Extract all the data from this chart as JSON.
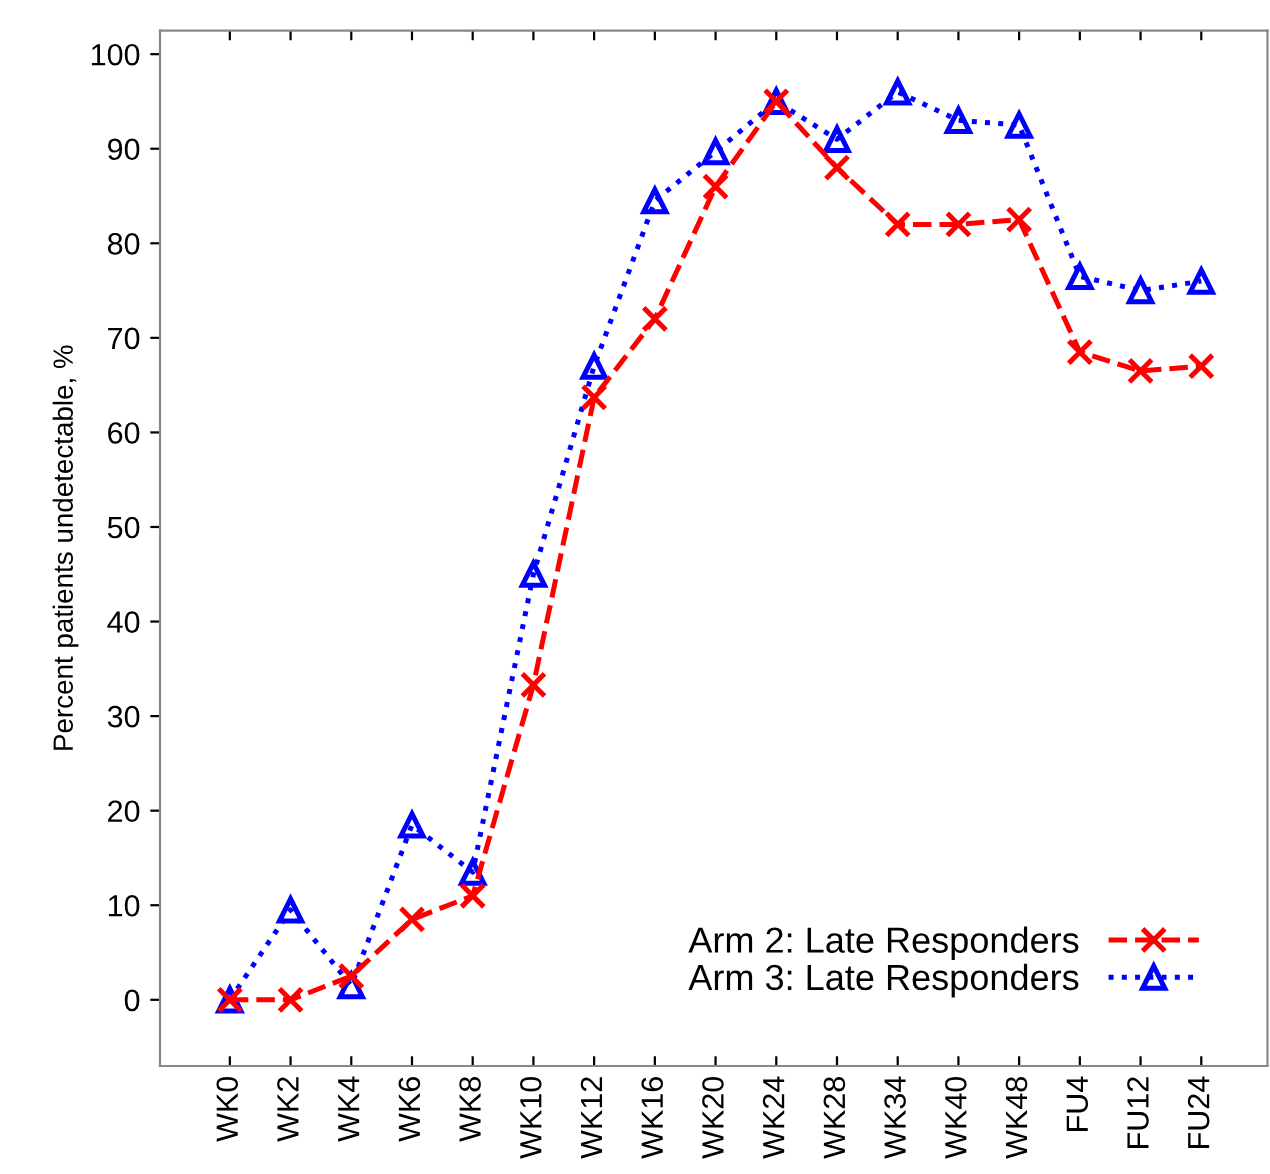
{
  "chart_data": {
    "type": "line",
    "ylabel": "Percent patients undetectable, %",
    "categories": [
      "WK0",
      "WK2",
      "WK4",
      "WK6",
      "WK8",
      "WK10",
      "WK12",
      "WK16",
      "WK20",
      "WK24",
      "WK28",
      "WK34",
      "WK40",
      "WK48",
      "FU4",
      "FU12",
      "FU24"
    ],
    "series": [
      {
        "name": "Arm 2: Late Responders",
        "color": "#ff0000",
        "marker": "cross",
        "line_style": "dashed",
        "values": [
          0,
          0,
          2.5,
          8.5,
          11,
          33.3,
          63.7,
          72,
          86,
          95,
          88,
          82,
          82,
          82.5,
          68.5,
          66.5,
          67
        ]
      },
      {
        "name": "Arm 3: Late Responders",
        "color": "#0000ff",
        "marker": "triangle",
        "line_style": "dotted",
        "values": [
          0,
          9.5,
          1.5,
          18.5,
          13.5,
          45,
          67,
          84.5,
          89.7,
          95,
          91,
          96,
          93,
          92.5,
          76.5,
          75,
          76
        ]
      }
    ],
    "ylim": [
      -7,
      102.5
    ],
    "yticks": [
      0,
      10,
      20,
      30,
      40,
      50,
      60,
      70,
      80,
      90,
      100
    ],
    "grid": false,
    "legend": "bottom right"
  }
}
